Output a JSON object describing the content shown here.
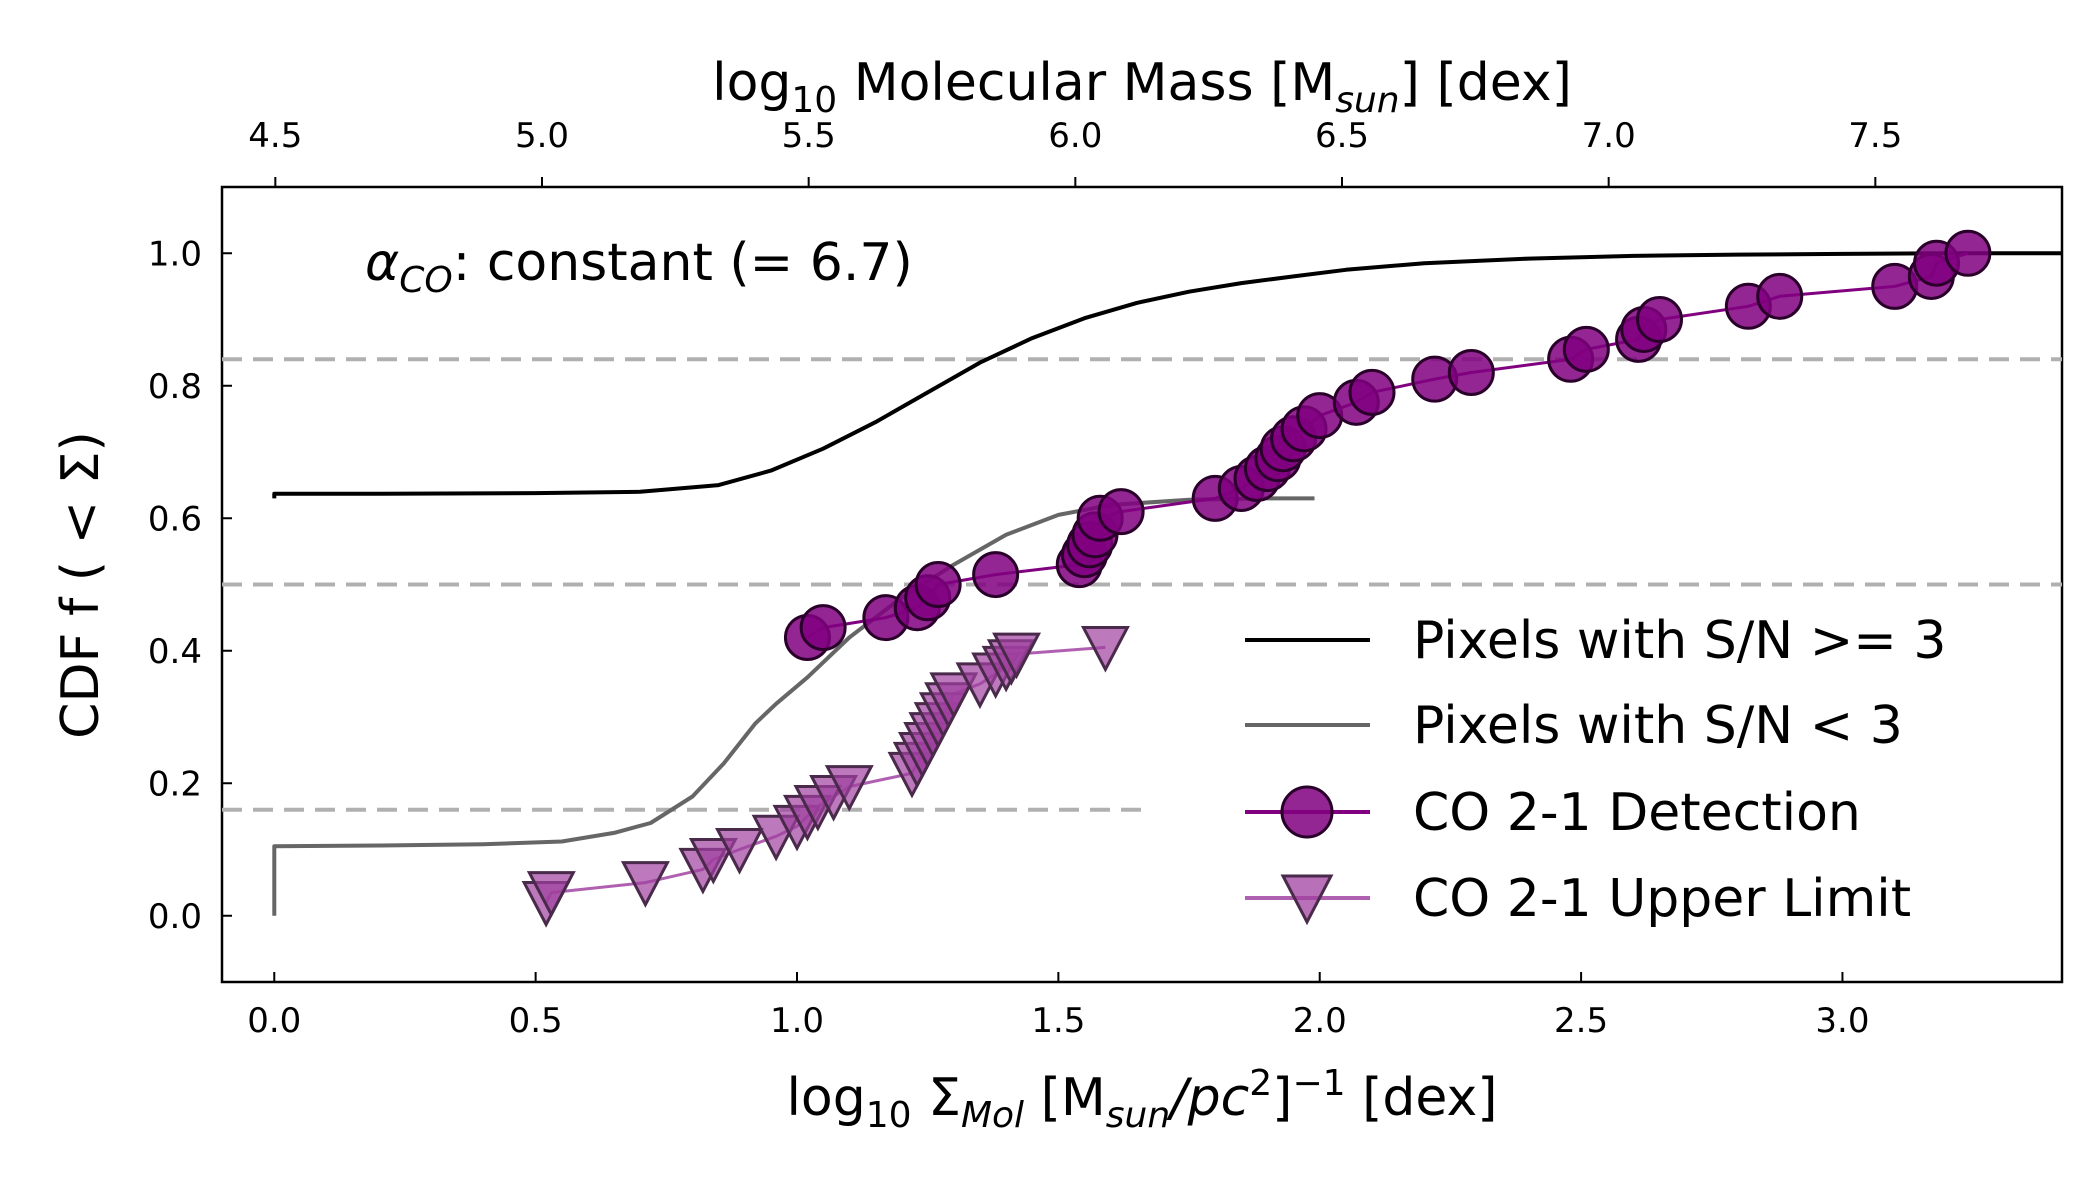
{
  "chart_data": {
    "type": "line",
    "annotation": {
      "prefix": "α",
      "subscript": "CO",
      "suffix": ": constant (= 6.7)"
    },
    "xlabel": {
      "prefix": "log",
      "sub1": "10",
      "mid": " Σ",
      "sub2": "Mol",
      "tail": " [M",
      "sub3": "sun",
      "tail2": "/pc",
      "sup1": "2",
      "tail3": "]",
      "sup2": "−1",
      "tail4": " [dex]"
    },
    "top_xlabel": {
      "prefix": "log",
      "sub1": "10",
      "mid": " Molecular Mass [M",
      "sub2": "sun",
      "tail": "] [dex]"
    },
    "ylabel": "CDF f ( < Σ)",
    "xlim": [
      -0.1,
      3.42
    ],
    "ylim": [
      -0.1,
      1.1
    ],
    "top_axis": {
      "min": 4.4,
      "max": 7.85
    },
    "xticks": [
      "0.0",
      "0.5",
      "1.0",
      "1.5",
      "2.0",
      "2.5",
      "3.0"
    ],
    "yticks": [
      "0.0",
      "0.2",
      "0.4",
      "0.6",
      "0.8",
      "1.0"
    ],
    "top_ticks": [
      "4.5",
      "5.0",
      "5.5",
      "6.0",
      "6.5",
      "7.0",
      "7.5"
    ],
    "hlines": [
      {
        "y": 0.84,
        "x_end": 3.42
      },
      {
        "y": 0.5,
        "x_end": 3.42
      },
      {
        "y": 0.16,
        "x_end": 1.67
      }
    ],
    "series": [
      {
        "name": "Pixels with S/N >= 3",
        "kind": "line",
        "color": "#000000",
        "x": [
          0.0,
          0.0,
          0.2,
          0.5,
          0.7,
          0.85,
          0.95,
          1.05,
          1.15,
          1.25,
          1.35,
          1.45,
          1.55,
          1.65,
          1.75,
          1.85,
          1.95,
          2.05,
          2.2,
          2.4,
          2.6,
          2.8,
          3.0,
          3.2,
          3.42
        ],
        "y": [
          0.63,
          0.637,
          0.637,
          0.638,
          0.64,
          0.65,
          0.672,
          0.705,
          0.745,
          0.79,
          0.835,
          0.872,
          0.902,
          0.925,
          0.942,
          0.955,
          0.965,
          0.975,
          0.985,
          0.992,
          0.996,
          0.998,
          0.999,
          1.0,
          1.0
        ]
      },
      {
        "name": "Pixels with S/N < 3",
        "kind": "line",
        "color": "#666666",
        "x": [
          0.0,
          0.0,
          0.2,
          0.4,
          0.55,
          0.65,
          0.72,
          0.8,
          0.86,
          0.92,
          0.96,
          1.02,
          1.1,
          1.2,
          1.3,
          1.4,
          1.5,
          1.6,
          1.75,
          1.9,
          1.99
        ],
        "y": [
          0.0,
          0.105,
          0.106,
          0.108,
          0.112,
          0.125,
          0.14,
          0.18,
          0.23,
          0.29,
          0.32,
          0.36,
          0.42,
          0.48,
          0.53,
          0.575,
          0.605,
          0.62,
          0.628,
          0.63,
          0.63
        ]
      },
      {
        "name": "CO 2-1 Detection",
        "kind": "marker",
        "marker": "circle",
        "color": "#800080",
        "x": [
          1.02,
          1.05,
          1.17,
          1.23,
          1.25,
          1.27,
          1.38,
          1.54,
          1.55,
          1.56,
          1.57,
          1.58,
          1.62,
          1.8,
          1.85,
          1.88,
          1.9,
          1.92,
          1.93,
          1.95,
          1.97,
          2.0,
          2.07,
          2.1,
          2.22,
          2.29,
          2.48,
          2.51,
          2.61,
          2.62,
          2.65,
          2.82,
          2.88,
          3.1,
          3.17,
          3.18,
          3.24
        ],
        "y": [
          0.42,
          0.435,
          0.45,
          0.465,
          0.48,
          0.5,
          0.515,
          0.53,
          0.545,
          0.56,
          0.575,
          0.6,
          0.61,
          0.63,
          0.645,
          0.66,
          0.675,
          0.69,
          0.705,
          0.72,
          0.735,
          0.755,
          0.775,
          0.79,
          0.81,
          0.82,
          0.84,
          0.855,
          0.87,
          0.885,
          0.9,
          0.92,
          0.935,
          0.95,
          0.965,
          0.985,
          1.0
        ]
      },
      {
        "name": "CO 2-1 Upper Limit",
        "kind": "marker",
        "marker": "triangle-down",
        "color": "#b060b0",
        "x": [
          0.52,
          0.53,
          0.71,
          0.82,
          0.84,
          0.89,
          0.96,
          1.0,
          1.02,
          1.04,
          1.07,
          1.1,
          1.22,
          1.23,
          1.24,
          1.25,
          1.26,
          1.27,
          1.28,
          1.29,
          1.3,
          1.35,
          1.38,
          1.4,
          1.41,
          1.42,
          1.59
        ],
        "y": [
          0.02,
          0.035,
          0.05,
          0.07,
          0.085,
          0.1,
          0.12,
          0.135,
          0.15,
          0.165,
          0.18,
          0.195,
          0.215,
          0.23,
          0.245,
          0.26,
          0.275,
          0.29,
          0.305,
          0.32,
          0.335,
          0.35,
          0.365,
          0.375,
          0.385,
          0.395,
          0.405
        ]
      }
    ],
    "legend": {
      "placement": "lower-right"
    }
  }
}
